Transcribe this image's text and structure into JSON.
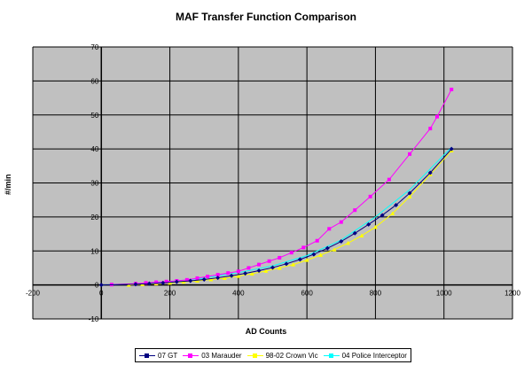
{
  "chart_data": {
    "type": "scatter",
    "title": "MAF Transfer Function Comparison",
    "xlabel": "AD Counts",
    "ylabel": "#/min",
    "xlim": [
      -200,
      1200
    ],
    "ylim": [
      -10,
      70
    ],
    "x_ticks": [
      -200,
      0,
      200,
      400,
      600,
      800,
      1000,
      1200
    ],
    "y_ticks": [
      -10,
      0,
      10,
      20,
      30,
      40,
      50,
      60,
      70
    ],
    "grid": true,
    "legend_position": "bottom",
    "series": [
      {
        "name": "07 GT",
        "color": "#000080",
        "marker": "diamond",
        "x": [
          0,
          100,
          140,
          180,
          220,
          260,
          300,
          340,
          380,
          420,
          460,
          500,
          540,
          580,
          620,
          660,
          700,
          740,
          780,
          820,
          860,
          900,
          960,
          1022
        ],
        "y": [
          0,
          0.2,
          0.4,
          0.6,
          0.9,
          1.2,
          1.6,
          2.1,
          2.7,
          3.4,
          4.2,
          5.1,
          6.2,
          7.5,
          9,
          10.8,
          12.8,
          15.2,
          17.8,
          20.5,
          23.5,
          27,
          33,
          40
        ]
      },
      {
        "name": "03 Marauder",
        "color": "#ff00ff",
        "marker": "square",
        "x": [
          30,
          100,
          130,
          160,
          190,
          220,
          250,
          280,
          310,
          340,
          370,
          400,
          430,
          460,
          490,
          520,
          555,
          590,
          630,
          665,
          700,
          740,
          785,
          840,
          900,
          960,
          980,
          1022
        ],
        "y": [
          0.1,
          0.4,
          0.6,
          0.8,
          1,
          1.2,
          1.5,
          2,
          2.5,
          3,
          3.5,
          4,
          5,
          6,
          7,
          8,
          9.5,
          11,
          13,
          16.5,
          18.5,
          22,
          26,
          31,
          38.5,
          46,
          49.5,
          57.5
        ]
      },
      {
        "name": "98-02 Crown Vic",
        "color": "#ffff00",
        "marker": "triangle",
        "x": [
          80,
          120,
          160,
          200,
          240,
          280,
          320,
          360,
          400,
          440,
          480,
          520,
          560,
          600,
          640,
          680,
          720,
          760,
          800,
          850,
          900,
          960,
          1022
        ],
        "y": [
          0,
          0.2,
          0.4,
          0.6,
          0.9,
          1.2,
          1.6,
          2,
          2.6,
          3.3,
          4.1,
          5,
          6,
          7.3,
          8.8,
          10.4,
          12.3,
          14.5,
          17,
          21,
          26,
          32.5,
          39.5
        ]
      },
      {
        "name": "04 Police Interceptor",
        "color": "#00ffff",
        "marker": "none",
        "x": [
          0,
          100,
          200,
          300,
          400,
          500,
          600,
          700,
          800,
          900,
          1022
        ],
        "y": [
          0,
          0.3,
          1,
          2,
          3.6,
          5.6,
          8.6,
          13.2,
          20,
          28,
          40.5
        ]
      }
    ]
  }
}
